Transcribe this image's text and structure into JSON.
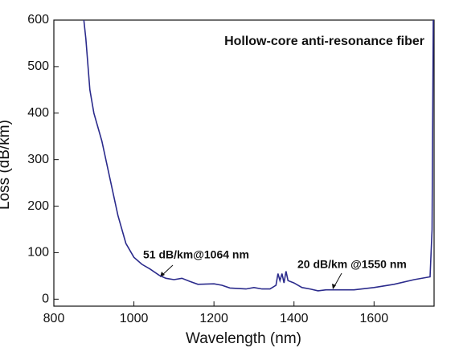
{
  "chart_data": {
    "type": "line",
    "title": "Hollow-core anti-resonance fiber",
    "xlabel": "Wavelength (nm)",
    "ylabel": "Loss (dB/km)",
    "annotations": [
      "51 dB/km@1064 nm",
      "20 dB/km @1550 nm"
    ],
    "xlim": [
      800,
      1750
    ],
    "xticks": [
      800,
      1000,
      1200,
      1400,
      1600
    ],
    "ylim": [
      -15,
      600
    ],
    "yticks": [
      0,
      100,
      200,
      300,
      400,
      500,
      600
    ],
    "series": [
      {
        "color": "#2b2b8c",
        "x": [
          875,
          880,
          890,
          900,
          920,
          940,
          960,
          980,
          1000,
          1020,
          1040,
          1064,
          1080,
          1100,
          1120,
          1140,
          1160,
          1200,
          1220,
          1240,
          1280,
          1300,
          1320,
          1340,
          1355,
          1360,
          1365,
          1370,
          1375,
          1380,
          1385,
          1400,
          1420,
          1440,
          1460,
          1480,
          1500,
          1550,
          1600,
          1650,
          1700,
          1740,
          1745,
          1748
        ],
        "values": [
          600,
          560,
          450,
          400,
          340,
          260,
          180,
          120,
          90,
          75,
          65,
          51,
          45,
          42,
          45,
          38,
          32,
          33,
          30,
          24,
          22,
          25,
          22,
          22,
          30,
          55,
          40,
          55,
          35,
          60,
          40,
          35,
          25,
          22,
          18,
          20,
          20,
          20,
          25,
          32,
          42,
          48,
          150,
          600
        ]
      }
    ]
  }
}
